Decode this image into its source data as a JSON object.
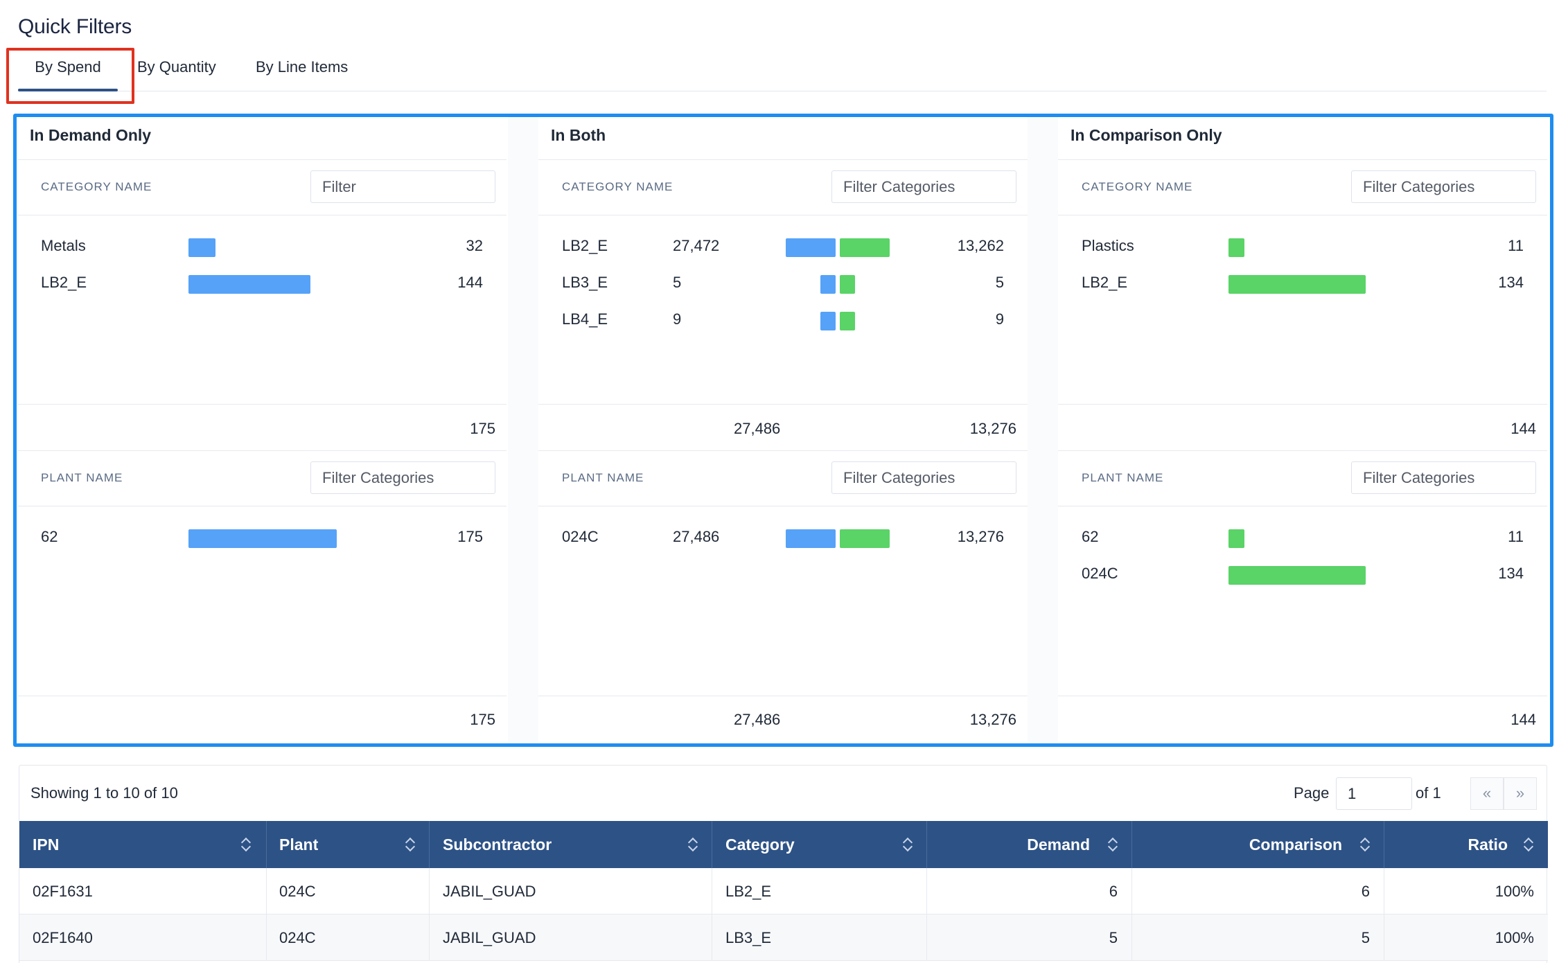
{
  "header": {
    "title": "Quick Filters"
  },
  "tabs": [
    {
      "label": "By Spend",
      "active": true
    },
    {
      "label": "By Quantity",
      "active": false
    },
    {
      "label": "By Line Items",
      "active": false
    }
  ],
  "colors": {
    "demand_bar": "#56a2f8",
    "comparison_bar": "#5ad367",
    "header_bg": "#2d5286",
    "highlight_red": "#e0321f",
    "highlight_blue": "#1d8df0"
  },
  "panels": {
    "demand_only": {
      "title": "In Demand Only",
      "category": {
        "label": "CATEGORY NAME",
        "placeholder": "Filter",
        "rows": [
          {
            "name": "Metals",
            "value": "32",
            "amount": 32
          },
          {
            "name": "LB2_E",
            "value": "144",
            "amount": 144
          }
        ],
        "total": "175"
      },
      "plant": {
        "label": "PLANT NAME",
        "placeholder": "Filter Categories",
        "rows": [
          {
            "name": "62",
            "value": "175",
            "amount": 175
          }
        ],
        "total": "175"
      }
    },
    "both": {
      "title": "In Both",
      "category": {
        "label": "CATEGORY NAME",
        "placeholder": "Filter Categories",
        "rows": [
          {
            "name": "LB2_E",
            "demand": "27,472",
            "comparison": "13,262"
          },
          {
            "name": "LB3_E",
            "demand": "5",
            "comparison": "5"
          },
          {
            "name": "LB4_E",
            "demand": "9",
            "comparison": "9"
          }
        ],
        "total_demand": "27,486",
        "total_comparison": "13,276"
      },
      "plant": {
        "label": "PLANT NAME",
        "placeholder": "Filter Categories",
        "rows": [
          {
            "name": "024C",
            "demand": "27,486",
            "comparison": "13,276"
          }
        ],
        "total_demand": "27,486",
        "total_comparison": "13,276"
      }
    },
    "comparison_only": {
      "title": "In Comparison Only",
      "category": {
        "label": "CATEGORY NAME",
        "placeholder": "Filter Categories",
        "rows": [
          {
            "name": "Plastics",
            "value": "11",
            "amount": 11
          },
          {
            "name": "LB2_E",
            "value": "134",
            "amount": 134
          }
        ],
        "total": "144"
      },
      "plant": {
        "label": "PLANT NAME",
        "placeholder": "Filter Categories",
        "rows": [
          {
            "name": "62",
            "value": "11",
            "amount": 11
          },
          {
            "name": "024C",
            "value": "134",
            "amount": 134
          }
        ],
        "total": "144"
      }
    }
  },
  "grid": {
    "showing": "Showing 1 to 10 of 10",
    "page_label": "Page",
    "page_value": "1",
    "of_label": "of 1",
    "first_label": "«",
    "last_label": "»",
    "columns": [
      "IPN",
      "Plant",
      "Subcontractor",
      "Category",
      "Demand",
      "Comparison",
      "Ratio"
    ],
    "rows": [
      [
        "02F1631",
        "024C",
        "JABIL_GUAD",
        "LB2_E",
        "6",
        "6",
        "100%"
      ],
      [
        "02F1640",
        "024C",
        "JABIL_GUAD",
        "LB3_E",
        "5",
        "5",
        "100%"
      ]
    ]
  }
}
